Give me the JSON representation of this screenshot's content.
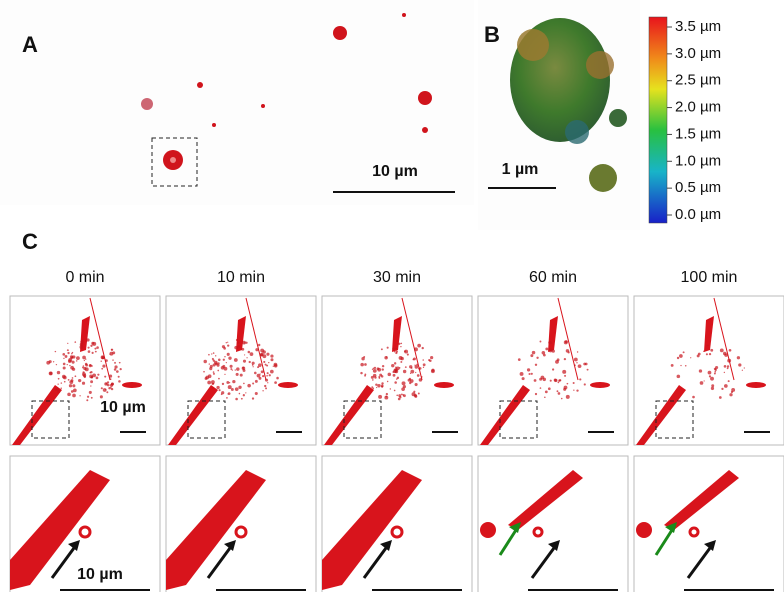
{
  "panels": {
    "a": {
      "label": "A",
      "scale_bar": "10 µm"
    },
    "b": {
      "label": "B",
      "scale_bar": "1 µm"
    },
    "c": {
      "label": "C",
      "times": [
        "0 min",
        "10 min",
        "30 min",
        "60 min",
        "100 min"
      ],
      "top_scale_bar": "10 µm",
      "bottom_scale_bar": "10 µm"
    }
  },
  "colorbar": {
    "labels": [
      "3.5 µm",
      "3.0 µm",
      "2.5 µm",
      "2.0 µm",
      "1.5 µm",
      "1.0 µm",
      "0.5 µm",
      "0.0 µm"
    ]
  }
}
